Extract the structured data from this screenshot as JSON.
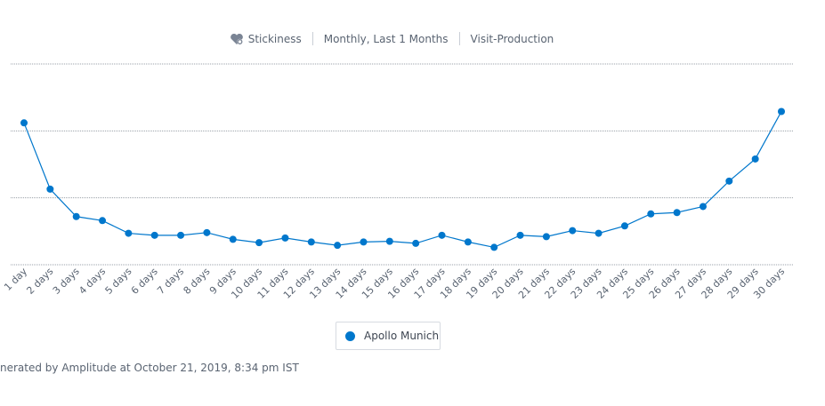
{
  "header": {
    "metric": "Stickiness",
    "range": "Monthly, Last 1 Months",
    "project": "Visit-Production"
  },
  "legend": {
    "label": "Apollo Munich"
  },
  "footer": {
    "text": "nerated by Amplitude at October 21, 2019, 8:34 pm IST"
  },
  "colors": {
    "series": "#0077cc",
    "grid": "#9aa0a8"
  },
  "chart_data": {
    "type": "line",
    "title": "",
    "xlabel": "",
    "ylabel": "",
    "grid": true,
    "ylim": [
      0,
      3
    ],
    "categories": [
      "1 day",
      "2 days",
      "3 days",
      "4 days",
      "5 days",
      "6 days",
      "7 days",
      "8 days",
      "9 days",
      "10 days",
      "11 days",
      "12 days",
      "13 days",
      "14 days",
      "15 days",
      "16 days",
      "17 days",
      "18 days",
      "19 days",
      "20 days",
      "21 days",
      "22 days",
      "23 days",
      "24 days",
      "25 days",
      "26 days",
      "27 days",
      "28 days",
      "29 days",
      "30 days"
    ],
    "series": [
      {
        "name": "Apollo Munich",
        "values": [
          2.12,
          1.13,
          0.72,
          0.66,
          0.47,
          0.44,
          0.44,
          0.48,
          0.38,
          0.33,
          0.4,
          0.34,
          0.29,
          0.34,
          0.35,
          0.32,
          0.44,
          0.34,
          0.26,
          0.44,
          0.42,
          0.51,
          0.47,
          0.58,
          0.76,
          0.78,
          0.87,
          1.25,
          1.58,
          2.29
        ]
      }
    ]
  }
}
